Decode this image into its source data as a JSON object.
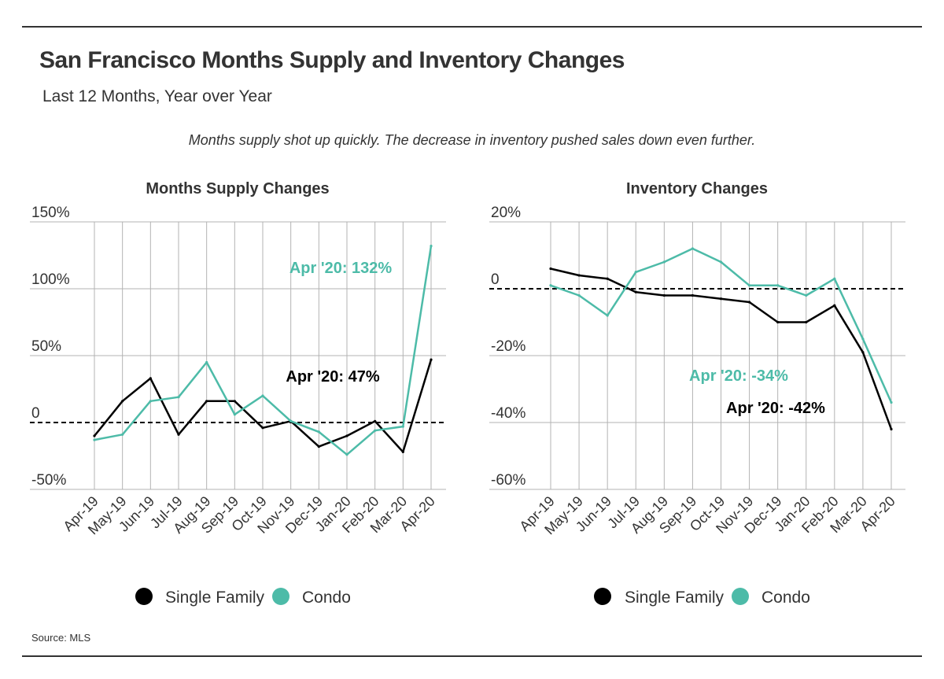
{
  "header": {
    "title": "San Francisco Months Supply and Inventory Changes",
    "subtitle": "Last 12 Months, Year over Year",
    "note": "Months supply shot up quickly. The decrease in inventory pushed sales down even further.",
    "source": "Source: MLS"
  },
  "colors": {
    "single_family": "#000000",
    "condo": "#4dbba8",
    "grid": "#b3b3b3",
    "text": "#333333"
  },
  "chart_data": [
    {
      "type": "line",
      "title": "Months Supply Changes",
      "categories": [
        "Apr-19",
        "May-19",
        "Jun-19",
        "Jul-19",
        "Aug-19",
        "Sep-19",
        "Oct-19",
        "Nov-19",
        "Dec-19",
        "Jan-20",
        "Feb-20",
        "Mar-20",
        "Apr-20"
      ],
      "yticks": [
        -50,
        0,
        50,
        100,
        150
      ],
      "ytick_labels": [
        "-50%",
        "0",
        "50%",
        "100%",
        "150%"
      ],
      "ylim": [
        -50,
        150
      ],
      "series": [
        {
          "name": "Single Family",
          "color": "#000000",
          "values": [
            -10,
            16,
            33,
            -9,
            16,
            16,
            -4,
            1,
            -18,
            -10,
            1,
            -22,
            47
          ]
        },
        {
          "name": "Condo",
          "color": "#4dbba8",
          "values": [
            -13,
            -9,
            16,
            19,
            45,
            6,
            20,
            1,
            -7,
            -24,
            -6,
            -3,
            132
          ]
        }
      ],
      "annotations": [
        {
          "text": "Apr '20: 132%",
          "series": "Condo"
        },
        {
          "text": "Apr '20: 47%",
          "series": "Single Family"
        }
      ],
      "legend": [
        "Single Family",
        "Condo"
      ],
      "legend_position": "bottom",
      "grid": true
    },
    {
      "type": "line",
      "title": "Inventory Changes",
      "categories": [
        "Apr-19",
        "May-19",
        "Jun-19",
        "Jul-19",
        "Aug-19",
        "Sep-19",
        "Oct-19",
        "Nov-19",
        "Dec-19",
        "Jan-20",
        "Feb-20",
        "Mar-20",
        "Apr-20"
      ],
      "yticks": [
        -60,
        -40,
        -20,
        0,
        20
      ],
      "ytick_labels": [
        "-60%",
        "-40%",
        "-20%",
        "0",
        "20%"
      ],
      "ylim": [
        -60,
        20
      ],
      "series": [
        {
          "name": "Single Family",
          "color": "#000000",
          "values": [
            6,
            4,
            3,
            -1,
            -2,
            -2,
            -3,
            -4,
            -10,
            -10,
            -5,
            -19,
            -42
          ]
        },
        {
          "name": "Condo",
          "color": "#4dbba8",
          "values": [
            1,
            -2,
            -8,
            5,
            8,
            12,
            8,
            1,
            1,
            -2,
            3,
            -15,
            -34
          ]
        }
      ],
      "annotations": [
        {
          "text": "Apr '20: -34%",
          "series": "Condo"
        },
        {
          "text": "Apr '20: -42%",
          "series": "Single Family"
        }
      ],
      "legend": [
        "Single Family",
        "Condo"
      ],
      "legend_position": "bottom",
      "grid": true
    }
  ]
}
